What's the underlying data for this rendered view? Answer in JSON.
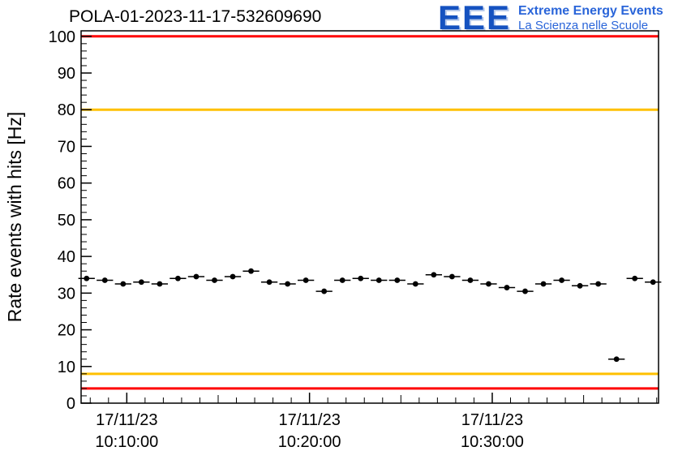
{
  "logo": {
    "acronym": "EEE",
    "line1": "Extreme Energy Events",
    "line2": "La Scienza nelle Scuole",
    "eee_color": "#1552c0",
    "text_color": "#2a65d9"
  },
  "chart_data": {
    "type": "scatter",
    "title": "POLA-01-2023-11-17-532609690",
    "ylabel": "Rate events with hits [Hz]",
    "ylim": [
      0,
      101.5
    ],
    "y_major_ticks": [
      0,
      10,
      20,
      30,
      40,
      50,
      60,
      70,
      80,
      90,
      100
    ],
    "y_minor_step": 2,
    "x_range_minutes": [
      7.5,
      39.1
    ],
    "x_major_ticks": [
      {
        "minute": 10,
        "date": "17/11/23",
        "time": "10:10:00"
      },
      {
        "minute": 20,
        "date": "17/11/23",
        "time": "10:20:00"
      },
      {
        "minute": 30,
        "date": "17/11/23",
        "time": "10:30:00"
      }
    ],
    "x_minor_step_minutes": 1,
    "grid": false,
    "legend": "none",
    "threshold_lines": [
      {
        "y": 100,
        "color": "#ff0000"
      },
      {
        "y": 80,
        "color": "#ffc000"
      },
      {
        "y": 8,
        "color": "#ffc000"
      },
      {
        "y": 4,
        "color": "#ff0000"
      }
    ],
    "series": [
      {
        "name": "rate-events-with-hits",
        "marker_color": "#000000",
        "x_err_minutes": 0.45,
        "y_err_hz": 0.6,
        "x_minutes": [
          7.8,
          8.8,
          9.8,
          10.8,
          11.8,
          12.8,
          13.8,
          14.8,
          15.8,
          16.8,
          17.8,
          18.8,
          19.8,
          20.8,
          21.8,
          22.8,
          23.8,
          24.8,
          25.8,
          26.8,
          27.8,
          28.8,
          29.8,
          30.8,
          31.8,
          32.8,
          33.8,
          34.8,
          35.8,
          36.8,
          37.8,
          38.8
        ],
        "y_hz": [
          34,
          33.5,
          32.5,
          33,
          32.5,
          34,
          34.5,
          33.5,
          34.5,
          36,
          33,
          32.5,
          33.5,
          30.5,
          33.5,
          34,
          33.5,
          33.5,
          32.5,
          35,
          34.5,
          33.5,
          32.5,
          31.5,
          30.5,
          32.5,
          33.5,
          32,
          32.5,
          12,
          34,
          33
        ]
      }
    ]
  }
}
